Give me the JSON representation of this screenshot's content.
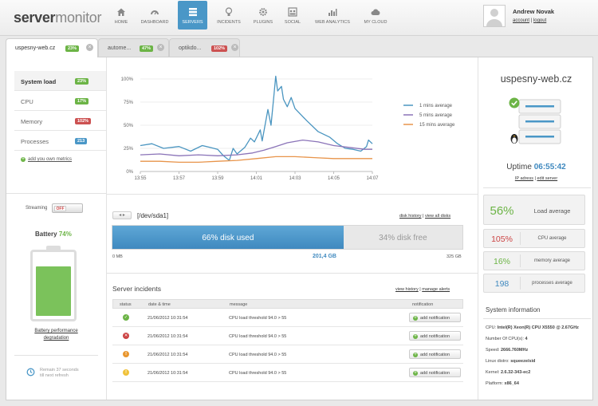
{
  "logo": {
    "part1": "server",
    "part2": "monitor"
  },
  "nav": [
    {
      "label": "HOME",
      "icon": "home-icon"
    },
    {
      "label": "DASHBOARD",
      "icon": "dashboard-icon"
    },
    {
      "label": "SERVERS",
      "icon": "servers-icon"
    },
    {
      "label": "INCIDENTS",
      "icon": "lightbulb-icon"
    },
    {
      "label": "PLUGINS",
      "icon": "gear-icon"
    },
    {
      "label": "SOCIAL",
      "icon": "social-icon"
    },
    {
      "label": "WEB ANALYTICS",
      "icon": "analytics-icon"
    },
    {
      "label": "MY CLOUD",
      "icon": "cloud-icon"
    }
  ],
  "user": {
    "name": "Andrew Novak",
    "account": "account",
    "separator": "|",
    "logout": "logout"
  },
  "tabs": [
    {
      "label": "uspesny-web.cz",
      "badge": "23%",
      "badge_color": "green"
    },
    {
      "label": "autome...",
      "badge": "47%",
      "badge_color": "green"
    },
    {
      "label": "optikdo...",
      "badge": "102%",
      "badge_color": "red"
    }
  ],
  "metrics": [
    {
      "label": "System load",
      "badge": "23%",
      "color": "green"
    },
    {
      "label": "CPU",
      "badge": "17%",
      "color": "green"
    },
    {
      "label": "Memory",
      "badge": "102%",
      "color": "red"
    },
    {
      "label": "Processes",
      "badge": "213",
      "color": "blue"
    }
  ],
  "add_metric": "add you own metrics",
  "streaming": {
    "label": "Streaming",
    "state": "OFF"
  },
  "battery": {
    "label": "Battery",
    "percent": "74%",
    "level": 0.74,
    "link_line1": "Battery performance",
    "link_line2": "degradation"
  },
  "refresh": {
    "line1": "Remain 37 seconds",
    "line2": "till next refresh"
  },
  "chart_data": {
    "type": "line",
    "x": [
      "13:55",
      "13:57",
      "13:59",
      "14:01",
      "14:03",
      "14:05",
      "14:07"
    ],
    "yticks": [
      "0%",
      "25%",
      "50%",
      "75%",
      "100%"
    ],
    "ylim": [
      0,
      100
    ],
    "xlim": [
      0,
      6
    ],
    "legend_position": "right",
    "series": [
      {
        "name": "1 mins average",
        "color": "#4a95c0",
        "points": [
          [
            0,
            28
          ],
          [
            0.3,
            30
          ],
          [
            0.6,
            25
          ],
          [
            1,
            27
          ],
          [
            1.3,
            22
          ],
          [
            1.6,
            28
          ],
          [
            1.8,
            26
          ],
          [
            2.0,
            24
          ],
          [
            2.15,
            17
          ],
          [
            2.3,
            12
          ],
          [
            2.4,
            25
          ],
          [
            2.5,
            19
          ],
          [
            2.7,
            26
          ],
          [
            2.85,
            36
          ],
          [
            2.95,
            32
          ],
          [
            3.1,
            45
          ],
          [
            3.15,
            33
          ],
          [
            3.3,
            67
          ],
          [
            3.38,
            50
          ],
          [
            3.45,
            80
          ],
          [
            3.5,
            103
          ],
          [
            3.55,
            87
          ],
          [
            3.65,
            92
          ],
          [
            3.7,
            78
          ],
          [
            3.8,
            70
          ],
          [
            3.9,
            80
          ],
          [
            4.0,
            68
          ],
          [
            4.3,
            55
          ],
          [
            4.6,
            43
          ],
          [
            4.9,
            37
          ],
          [
            5.1,
            30
          ],
          [
            5.3,
            25
          ],
          [
            5.5,
            24
          ],
          [
            5.7,
            22
          ],
          [
            5.85,
            27
          ],
          [
            5.9,
            34
          ],
          [
            6,
            30
          ]
        ]
      },
      {
        "name": "5 mins average",
        "color": "#8a73b8",
        "points": [
          [
            0,
            18
          ],
          [
            0.5,
            19
          ],
          [
            1,
            17
          ],
          [
            1.5,
            18
          ],
          [
            2,
            17
          ],
          [
            2.5,
            18
          ],
          [
            2.9,
            20
          ],
          [
            3.2,
            23
          ],
          [
            3.5,
            27
          ],
          [
            3.8,
            31
          ],
          [
            4.2,
            34
          ],
          [
            4.6,
            32
          ],
          [
            5.0,
            28
          ],
          [
            5.4,
            26
          ],
          [
            5.8,
            24
          ],
          [
            6,
            24
          ]
        ]
      },
      {
        "name": "15 mins average",
        "color": "#e8944a",
        "points": [
          [
            0,
            11
          ],
          [
            0.5,
            11
          ],
          [
            1,
            10
          ],
          [
            1.5,
            10
          ],
          [
            2,
            11
          ],
          [
            2.5,
            12
          ],
          [
            3,
            14
          ],
          [
            3.5,
            16
          ],
          [
            4,
            16
          ],
          [
            4.5,
            15
          ],
          [
            5,
            14
          ],
          [
            5.5,
            14
          ],
          [
            6,
            14
          ]
        ]
      }
    ]
  },
  "disk": {
    "path": "[/dev/sda1]",
    "links": {
      "history": "disk history",
      "separator": "|",
      "all": "view all disks"
    },
    "used_label": "66% disk used",
    "free_label": "34% disk free",
    "used_fraction": 0.66,
    "min": "0 MB",
    "used_gb": "201,4 GB",
    "max": "325 GB"
  },
  "incidents": {
    "title": "Server incidents",
    "links": {
      "history": "view history",
      "separator": "|",
      "manage": "manage alerts"
    },
    "columns": [
      "status",
      "date & time",
      "message",
      "notification"
    ],
    "rows": [
      {
        "status": "ok",
        "color": "#6cb446",
        "glyph": "✓",
        "datetime": "21/06/2012   10:31:54",
        "message": "CPU load threshold 94.0 > 55",
        "action": "add notification"
      },
      {
        "status": "error",
        "color": "#cc4444",
        "glyph": "✕",
        "datetime": "21/06/2012   10:31:54",
        "message": "CPU load threshold 94.0 > 55",
        "action": "add notification"
      },
      {
        "status": "warning",
        "color": "#e8962e",
        "glyph": "!",
        "datetime": "21/06/2012   10:31:54",
        "message": "CPU load threshold 94.0 > 55",
        "action": "add notification"
      },
      {
        "status": "notice",
        "color": "#f0c23a",
        "glyph": "!",
        "datetime": "21/06/2012   10:31:54",
        "message": "CPU load threshold 94.0 > 55",
        "action": "add notification"
      }
    ]
  },
  "server": {
    "name": "uspesny-web.cz",
    "uptime_label": "Uptime",
    "uptime": "06:55:42",
    "links": {
      "ip": "IP adress",
      "separator": "|",
      "edit": "edit server"
    }
  },
  "right_stats": [
    {
      "value": "56%",
      "label": "Load average",
      "color": "#6cb446"
    },
    {
      "value": "105%",
      "label": "CPU average",
      "color": "#cc4444"
    },
    {
      "value": "16%",
      "label": "memory average",
      "color": "#6cb446"
    },
    {
      "value": "198",
      "label": "processes average",
      "color": "#3f89bf"
    }
  ],
  "sysinfo": {
    "title": "System information",
    "items": [
      {
        "label": "CPU:",
        "value": "Intel(R) Xeon(R) CPU X5550 @ 2.67GHz"
      },
      {
        "label": "Number Of CPU(s):",
        "value": "4"
      },
      {
        "label": "Speed:",
        "value": "2666.760MHz"
      },
      {
        "label": "Linux distro:",
        "value": "squeeze/sid"
      },
      {
        "label": "Kernel:",
        "value": "2.6.32-343-ec2"
      },
      {
        "label": "Platform:",
        "value": "x86_64"
      }
    ]
  }
}
